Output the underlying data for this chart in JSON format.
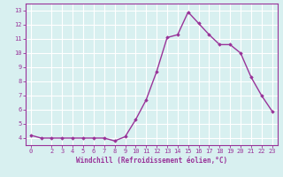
{
  "x": [
    0,
    1,
    2,
    3,
    4,
    5,
    6,
    7,
    8,
    9,
    10,
    11,
    12,
    13,
    14,
    15,
    16,
    17,
    18,
    19,
    20,
    21,
    22,
    23
  ],
  "y": [
    4.2,
    4.0,
    4.0,
    4.0,
    4.0,
    4.0,
    4.0,
    4.0,
    3.8,
    4.1,
    5.3,
    6.7,
    8.7,
    11.1,
    11.3,
    12.9,
    12.1,
    11.3,
    10.6,
    10.6,
    10.0,
    8.3,
    7.0,
    5.9
  ],
  "line_color": "#993399",
  "marker": "D",
  "marker_size": 1.8,
  "linewidth": 1.0,
  "bg_color": "#d8f0f0",
  "grid_color": "#ffffff",
  "xlabel": "Windchill (Refroidissement éolien,°C)",
  "xlabel_color": "#993399",
  "tick_color": "#993399",
  "spine_color": "#993399",
  "ylim": [
    3.5,
    13.5
  ],
  "xlim": [
    -0.5,
    23.5
  ],
  "yticks": [
    4,
    5,
    6,
    7,
    8,
    9,
    10,
    11,
    12,
    13
  ],
  "xticks": [
    0,
    2,
    3,
    4,
    5,
    6,
    7,
    8,
    9,
    10,
    11,
    12,
    13,
    14,
    15,
    16,
    17,
    18,
    19,
    20,
    21,
    22,
    23
  ],
  "tick_fontsize": 5.0,
  "xlabel_fontsize": 5.5
}
